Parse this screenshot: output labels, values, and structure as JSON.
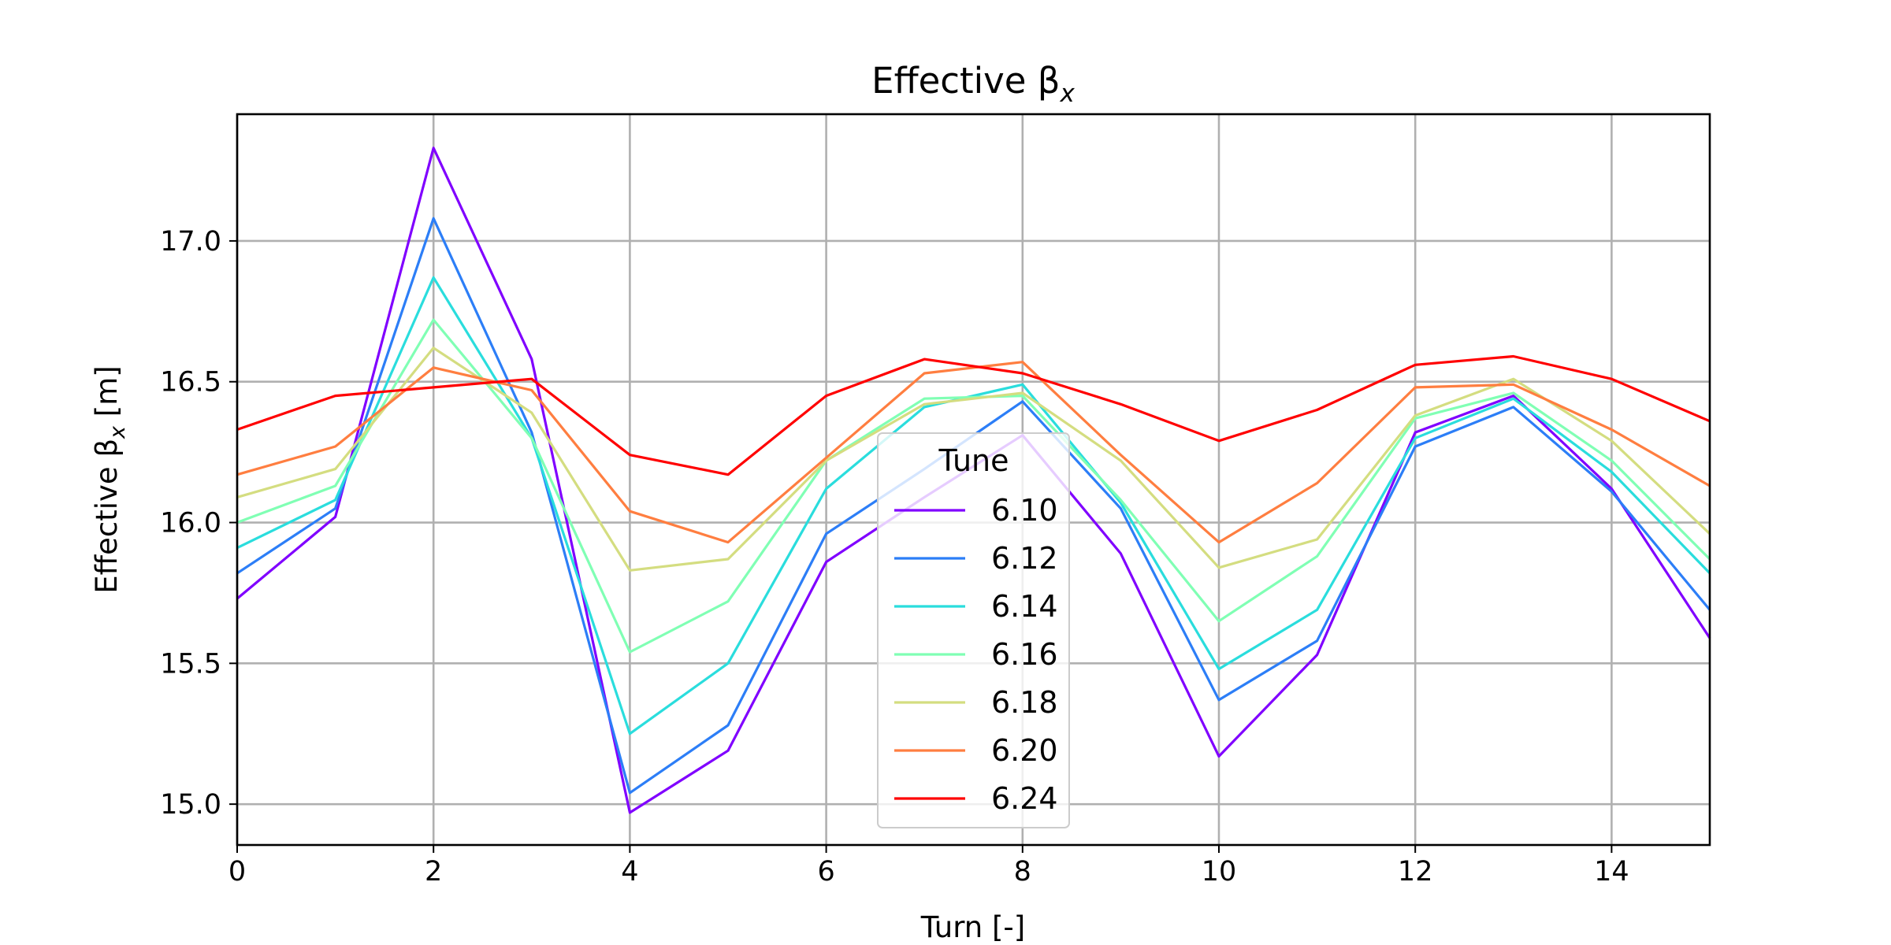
{
  "chart_data": {
    "type": "line",
    "title": "Effective β",
    "title_subscript": "x",
    "xlabel": "Turn [-]",
    "ylabel": "Effective β",
    "ylabel_subscript": "x",
    "ylabel_unit": " [m]",
    "xlim": [
      0,
      15
    ],
    "ylim": [
      14.855,
      17.45
    ],
    "xticks": [
      0,
      2,
      4,
      6,
      8,
      10,
      12,
      14
    ],
    "yticks": [
      15.0,
      15.5,
      16.0,
      16.5,
      17.0
    ],
    "ytick_labels": [
      "15.0",
      "15.5",
      "16.0",
      "16.5",
      "17.0"
    ],
    "grid": true,
    "legend_title": "Tune",
    "legend_placement": "lower-center",
    "x": [
      0,
      1,
      2,
      3,
      4,
      5,
      6,
      7,
      8,
      9,
      10,
      11,
      12,
      13,
      14,
      15
    ],
    "series": [
      {
        "name": "6.10",
        "color": "#8000ff",
        "values": [
          15.73,
          16.02,
          17.33,
          16.58,
          14.97,
          15.19,
          15.86,
          16.09,
          16.31,
          15.89,
          15.17,
          15.53,
          16.32,
          16.45,
          16.12,
          15.59
        ]
      },
      {
        "name": "6.12",
        "color": "#2c7ef7",
        "values": [
          15.82,
          16.05,
          17.08,
          16.32,
          15.04,
          15.28,
          15.96,
          16.19,
          16.43,
          16.05,
          15.37,
          15.58,
          16.27,
          16.41,
          16.11,
          15.69
        ]
      },
      {
        "name": "6.14",
        "color": "#2adddd",
        "values": [
          15.91,
          16.08,
          16.87,
          16.3,
          15.25,
          15.5,
          16.12,
          16.41,
          16.49,
          16.07,
          15.48,
          15.69,
          16.3,
          16.44,
          16.18,
          15.82
        ]
      },
      {
        "name": "6.16",
        "color": "#80ffb4",
        "values": [
          16.0,
          16.13,
          16.72,
          16.3,
          15.54,
          15.72,
          16.22,
          16.44,
          16.45,
          16.08,
          15.65,
          15.88,
          16.37,
          16.46,
          16.22,
          15.87
        ]
      },
      {
        "name": "6.18",
        "color": "#d4dd80",
        "values": [
          16.09,
          16.19,
          16.62,
          16.39,
          15.83,
          15.87,
          16.22,
          16.42,
          16.46,
          16.22,
          15.84,
          15.94,
          16.38,
          16.51,
          16.29,
          15.96
        ]
      },
      {
        "name": "6.20",
        "color": "#ff7e40",
        "values": [
          16.17,
          16.27,
          16.55,
          16.47,
          16.04,
          15.93,
          16.23,
          16.53,
          16.57,
          16.24,
          15.93,
          16.14,
          16.48,
          16.49,
          16.33,
          16.13
        ]
      },
      {
        "name": "6.24",
        "color": "#ff0000",
        "values": [
          16.33,
          16.45,
          16.48,
          16.51,
          16.24,
          16.17,
          16.45,
          16.58,
          16.53,
          16.42,
          16.29,
          16.4,
          16.56,
          16.59,
          16.51,
          16.36
        ]
      }
    ]
  }
}
